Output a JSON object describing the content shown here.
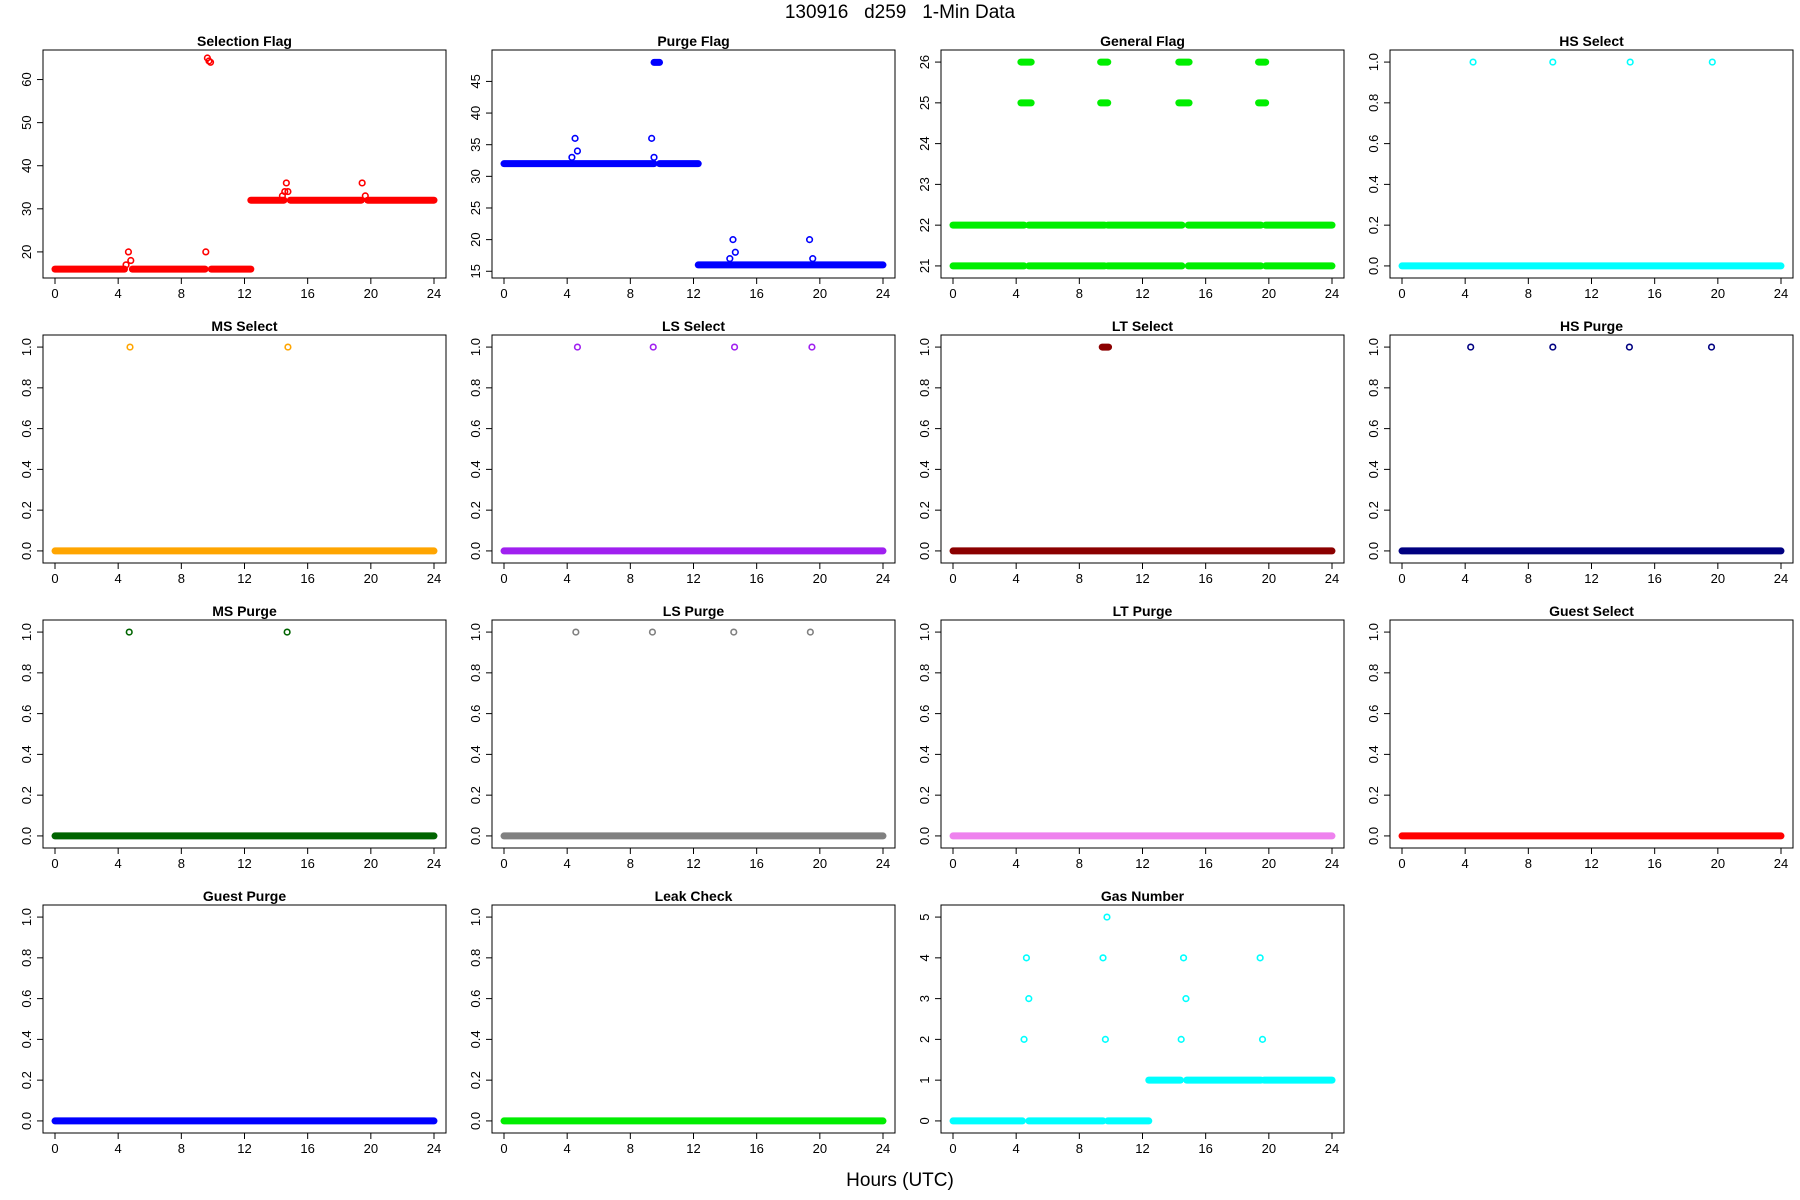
{
  "title": "130916   d259   1-Min Data",
  "xlabel": "Hours (UTC)",
  "chart_data": [
    {
      "type": "scatter",
      "title": "Selection Flag",
      "color": "#ff0000",
      "xlim": [
        0,
        24
      ],
      "ylim": [
        15.8,
        65
      ],
      "yticks": [
        20,
        30,
        40,
        50,
        60
      ],
      "xticks": [
        0,
        4,
        8,
        12,
        16,
        20,
        24
      ],
      "segments": [
        [
          0,
          4.4,
          16
        ],
        [
          4.9,
          9.5,
          16
        ],
        [
          9.9,
          12.4,
          16
        ],
        [
          12.4,
          14.5,
          32
        ],
        [
          14.9,
          19.4,
          32
        ],
        [
          19.8,
          24,
          32
        ]
      ],
      "points": [
        [
          4.5,
          17
        ],
        [
          4.65,
          20
        ],
        [
          4.8,
          18
        ],
        [
          9.55,
          20
        ],
        [
          9.65,
          65
        ],
        [
          9.75,
          64.3
        ],
        [
          9.85,
          64
        ],
        [
          14.4,
          33
        ],
        [
          14.55,
          34
        ],
        [
          14.65,
          36
        ],
        [
          14.75,
          34
        ],
        [
          19.45,
          36
        ],
        [
          19.65,
          33
        ]
      ]
    },
    {
      "type": "scatter",
      "title": "Purge Flag",
      "color": "#0000ff",
      "xlim": [
        0,
        24
      ],
      "ylim": [
        15.2,
        48.7
      ],
      "yticks": [
        15,
        20,
        25,
        30,
        35,
        40,
        45
      ],
      "xticks": [
        0,
        4,
        8,
        12,
        16,
        20,
        24
      ],
      "segments": [
        [
          0,
          9.5,
          32
        ],
        [
          9.85,
          12.3,
          32
        ],
        [
          12.3,
          24,
          16
        ],
        [
          9.5,
          9.85,
          48
        ]
      ],
      "points": [
        [
          4.3,
          33
        ],
        [
          4.5,
          36
        ],
        [
          4.65,
          34
        ],
        [
          9.35,
          36
        ],
        [
          9.5,
          33
        ],
        [
          14.3,
          17
        ],
        [
          14.5,
          20
        ],
        [
          14.65,
          18
        ],
        [
          19.35,
          20
        ],
        [
          19.55,
          17
        ]
      ]
    },
    {
      "type": "scatter",
      "title": "General Flag",
      "color": "#00ee00",
      "xlim": [
        0,
        24
      ],
      "ylim": [
        20.9,
        26.1
      ],
      "yticks": [
        21,
        22,
        23,
        24,
        25,
        26
      ],
      "xticks": [
        0,
        4,
        8,
        12,
        16,
        20,
        24
      ],
      "segments": [
        [
          0,
          4.5,
          21
        ],
        [
          4.8,
          9.6,
          21
        ],
        [
          9.8,
          14.5,
          21
        ],
        [
          14.9,
          19.5,
          21
        ],
        [
          19.8,
          24,
          21
        ],
        [
          0,
          4.5,
          22
        ],
        [
          4.8,
          9.6,
          22
        ],
        [
          9.8,
          14.5,
          22
        ],
        [
          14.9,
          19.5,
          22
        ],
        [
          19.8,
          24,
          22
        ],
        [
          4.3,
          4.95,
          25
        ],
        [
          9.35,
          9.8,
          25
        ],
        [
          14.3,
          14.95,
          25
        ],
        [
          19.35,
          19.8,
          25
        ],
        [
          4.3,
          4.95,
          26
        ],
        [
          9.35,
          9.8,
          26
        ],
        [
          14.3,
          14.95,
          26
        ],
        [
          19.35,
          19.8,
          26
        ]
      ],
      "points": []
    },
    {
      "type": "scatter",
      "title": "HS Select",
      "color": "#00ffff",
      "xlim": [
        0,
        24
      ],
      "ylim": [
        -0.02,
        1.02
      ],
      "yticks": [
        0.0,
        0.2,
        0.4,
        0.6,
        0.8,
        1.0
      ],
      "xticks": [
        0,
        4,
        8,
        12,
        16,
        20,
        24
      ],
      "segments": [
        [
          0,
          24,
          0
        ]
      ],
      "points": [
        [
          4.5,
          1
        ],
        [
          9.55,
          1
        ],
        [
          14.45,
          1
        ],
        [
          19.65,
          1
        ]
      ]
    },
    {
      "type": "scatter",
      "title": "MS Select",
      "color": "#ffa500",
      "xlim": [
        0,
        24
      ],
      "ylim": [
        -0.02,
        1.02
      ],
      "yticks": [
        0.0,
        0.2,
        0.4,
        0.6,
        0.8,
        1.0
      ],
      "xticks": [
        0,
        4,
        8,
        12,
        16,
        20,
        24
      ],
      "segments": [
        [
          0,
          24,
          0
        ]
      ],
      "points": [
        [
          4.75,
          1
        ],
        [
          14.75,
          1
        ]
      ]
    },
    {
      "type": "scatter",
      "title": "LS Select",
      "color": "#a020f0",
      "xlim": [
        0,
        24
      ],
      "ylim": [
        -0.02,
        1.02
      ],
      "yticks": [
        0.0,
        0.2,
        0.4,
        0.6,
        0.8,
        1.0
      ],
      "xticks": [
        0,
        4,
        8,
        12,
        16,
        20,
        24
      ],
      "segments": [
        [
          0,
          24,
          0
        ]
      ],
      "points": [
        [
          4.65,
          1
        ],
        [
          9.45,
          1
        ],
        [
          14.6,
          1
        ],
        [
          19.5,
          1
        ]
      ]
    },
    {
      "type": "scatter",
      "title": "LT Select",
      "color": "#8b0000",
      "xlim": [
        0,
        24
      ],
      "ylim": [
        -0.02,
        1.02
      ],
      "yticks": [
        0.0,
        0.2,
        0.4,
        0.6,
        0.8,
        1.0
      ],
      "xticks": [
        0,
        4,
        8,
        12,
        16,
        20,
        24
      ],
      "segments": [
        [
          0,
          24,
          0
        ],
        [
          9.45,
          9.85,
          1
        ]
      ],
      "points": []
    },
    {
      "type": "scatter",
      "title": "HS Purge",
      "color": "#000080",
      "xlim": [
        0,
        24
      ],
      "ylim": [
        -0.02,
        1.02
      ],
      "yticks": [
        0.0,
        0.2,
        0.4,
        0.6,
        0.8,
        1.0
      ],
      "xticks": [
        0,
        4,
        8,
        12,
        16,
        20,
        24
      ],
      "segments": [
        [
          0,
          24,
          0
        ]
      ],
      "points": [
        [
          4.35,
          1
        ],
        [
          9.55,
          1
        ],
        [
          14.4,
          1
        ],
        [
          19.6,
          1
        ]
      ]
    },
    {
      "type": "scatter",
      "title": "MS Purge",
      "color": "#006400",
      "xlim": [
        0,
        24
      ],
      "ylim": [
        -0.02,
        1.02
      ],
      "yticks": [
        0.0,
        0.2,
        0.4,
        0.6,
        0.8,
        1.0
      ],
      "xticks": [
        0,
        4,
        8,
        12,
        16,
        20,
        24
      ],
      "segments": [
        [
          0,
          24,
          0
        ]
      ],
      "points": [
        [
          4.7,
          1
        ],
        [
          14.7,
          1
        ]
      ]
    },
    {
      "type": "scatter",
      "title": "LS Purge",
      "color": "#808080",
      "xlim": [
        0,
        24
      ],
      "ylim": [
        -0.02,
        1.02
      ],
      "yticks": [
        0.0,
        0.2,
        0.4,
        0.6,
        0.8,
        1.0
      ],
      "xticks": [
        0,
        4,
        8,
        12,
        16,
        20,
        24
      ],
      "segments": [
        [
          0,
          24,
          0
        ]
      ],
      "points": [
        [
          4.55,
          1
        ],
        [
          9.4,
          1
        ],
        [
          14.55,
          1
        ],
        [
          19.4,
          1
        ]
      ]
    },
    {
      "type": "scatter",
      "title": "LT Purge",
      "color": "#ee82ee",
      "xlim": [
        0,
        24
      ],
      "ylim": [
        -0.02,
        1.02
      ],
      "yticks": [
        0.0,
        0.2,
        0.4,
        0.6,
        0.8,
        1.0
      ],
      "xticks": [
        0,
        4,
        8,
        12,
        16,
        20,
        24
      ],
      "segments": [
        [
          0,
          24,
          0
        ]
      ],
      "points": []
    },
    {
      "type": "scatter",
      "title": "Guest Select",
      "color": "#ff0000",
      "xlim": [
        0,
        24
      ],
      "ylim": [
        -0.02,
        1.02
      ],
      "yticks": [
        0.0,
        0.2,
        0.4,
        0.6,
        0.8,
        1.0
      ],
      "xticks": [
        0,
        4,
        8,
        12,
        16,
        20,
        24
      ],
      "segments": [
        [
          0,
          24,
          0
        ]
      ],
      "points": []
    },
    {
      "type": "scatter",
      "title": "Guest Purge",
      "color": "#0000ff",
      "xlim": [
        0,
        24
      ],
      "ylim": [
        -0.02,
        1.02
      ],
      "yticks": [
        0.0,
        0.2,
        0.4,
        0.6,
        0.8,
        1.0
      ],
      "xticks": [
        0,
        4,
        8,
        12,
        16,
        20,
        24
      ],
      "segments": [
        [
          0,
          24,
          0
        ]
      ],
      "points": []
    },
    {
      "type": "scatter",
      "title": "Leak Check",
      "color": "#00ee00",
      "xlim": [
        0,
        24
      ],
      "ylim": [
        -0.02,
        1.02
      ],
      "yticks": [
        0.0,
        0.2,
        0.4,
        0.6,
        0.8,
        1.0
      ],
      "xticks": [
        0,
        4,
        8,
        12,
        16,
        20,
        24
      ],
      "segments": [
        [
          0,
          24,
          0
        ]
      ],
      "points": []
    },
    {
      "type": "scatter",
      "title": "Gas Number",
      "color": "#00ffff",
      "xlim": [
        0,
        24
      ],
      "ylim": [
        -0.1,
        5.1
      ],
      "yticks": [
        0,
        1,
        2,
        3,
        4,
        5
      ],
      "xticks": [
        0,
        4,
        8,
        12,
        16,
        20,
        24
      ],
      "segments": [
        [
          0,
          4.4,
          0
        ],
        [
          4.8,
          9.5,
          0
        ],
        [
          9.8,
          12.4,
          0
        ],
        [
          12.4,
          14.4,
          1
        ],
        [
          14.8,
          19.5,
          1
        ],
        [
          19.7,
          24,
          1
        ]
      ],
      "points": [
        [
          4.5,
          2
        ],
        [
          4.65,
          4
        ],
        [
          4.8,
          3
        ],
        [
          9.5,
          4
        ],
        [
          9.65,
          2
        ],
        [
          9.75,
          5
        ],
        [
          14.45,
          2
        ],
        [
          14.6,
          4
        ],
        [
          14.75,
          3
        ],
        [
          19.45,
          4
        ],
        [
          19.6,
          2
        ]
      ]
    }
  ]
}
